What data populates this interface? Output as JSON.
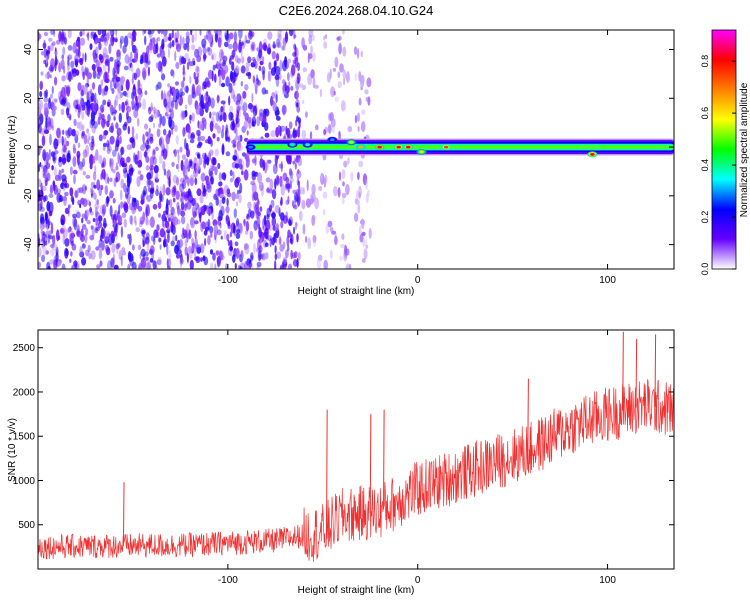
{
  "title": "C2E6.2024.268.04.10.G24",
  "chart_data": [
    {
      "type": "heatmap",
      "xlabel": "Height of straight line (km)",
      "ylabel": "Frequency (Hz)",
      "xlim": [
        -200,
        135
      ],
      "ylim": [
        -50,
        48
      ],
      "x_ticks": [
        -100,
        0,
        100
      ],
      "x_tick_labels": [
        "-100",
        "0",
        "100"
      ],
      "y_ticks": [
        -40,
        -20,
        0,
        20,
        40
      ],
      "y_tick_labels": [
        "-40",
        "-20",
        "0",
        "20",
        "40"
      ],
      "grid": false,
      "colorbar": {
        "label": "Normalized spectral amplitude",
        "range": [
          0,
          0.92
        ],
        "ticks": [
          0,
          0.2,
          0.4,
          0.6,
          0.8
        ],
        "tick_labels": [
          "0.0",
          "0.2",
          "0.4",
          "0.6",
          "0.8"
        ],
        "colormap": [
          "#ffffff",
          "#6600ff",
          "#0000ff",
          "#00ffff",
          "#00ff00",
          "#ffff00",
          "#ff8000",
          "#ff0000",
          "#ff00ff"
        ]
      },
      "noise_region_x": [
        -200,
        -25
      ],
      "band": {
        "center_hz": 0,
        "half_width_hz": 3,
        "x_start": -90,
        "x_end": 135
      },
      "hotspots": [
        {
          "x": -88,
          "f": 0,
          "amp": 0.3
        },
        {
          "x": -66,
          "f": 1,
          "amp": 0.4
        },
        {
          "x": -58,
          "f": 1,
          "amp": 0.35
        },
        {
          "x": -45,
          "f": 3,
          "amp": 0.3
        },
        {
          "x": -35,
          "f": 2,
          "amp": 0.55
        },
        {
          "x": -30,
          "f": 0,
          "amp": 0.65
        },
        {
          "x": -20,
          "f": 0,
          "amp": 0.85
        },
        {
          "x": -10,
          "f": 0,
          "amp": 0.8
        },
        {
          "x": -5,
          "f": 0,
          "amp": 0.82
        },
        {
          "x": 2,
          "f": -2,
          "amp": 0.6
        },
        {
          "x": 15,
          "f": 0,
          "amp": 0.75
        },
        {
          "x": 92,
          "f": -3,
          "amp": 0.8
        }
      ]
    },
    {
      "type": "line",
      "xlabel": "Height of straight line (km)",
      "ylabel": "SNR (10 * v/v)",
      "xlim": [
        -200,
        135
      ],
      "ylim": [
        0,
        2700
      ],
      "x_ticks": [
        -100,
        0,
        100
      ],
      "x_tick_labels": [
        "-100",
        "0",
        "100"
      ],
      "y_ticks": [
        500,
        1000,
        1500,
        2000,
        2500
      ],
      "y_tick_labels": [
        "500",
        "1000",
        "1500",
        "2000",
        "2500"
      ],
      "grid": false,
      "line_color": "#f03030",
      "trend": [
        {
          "x": -200,
          "y": 250
        },
        {
          "x": -120,
          "y": 270
        },
        {
          "x": -75,
          "y": 320
        },
        {
          "x": -50,
          "y": 420
        },
        {
          "x": -40,
          "y": 600
        },
        {
          "x": -20,
          "y": 650
        },
        {
          "x": 0,
          "y": 900
        },
        {
          "x": 20,
          "y": 1050
        },
        {
          "x": 40,
          "y": 1200
        },
        {
          "x": 60,
          "y": 1350
        },
        {
          "x": 80,
          "y": 1600
        },
        {
          "x": 100,
          "y": 1750
        },
        {
          "x": 120,
          "y": 1850
        },
        {
          "x": 135,
          "y": 1800
        }
      ],
      "spikes": [
        {
          "x": -155,
          "y": 980
        },
        {
          "x": -48,
          "y": 1800
        },
        {
          "x": -25,
          "y": 1750
        },
        {
          "x": -18,
          "y": 1800
        },
        {
          "x": 58,
          "y": 2150
        },
        {
          "x": 108,
          "y": 2680
        },
        {
          "x": 115,
          "y": 2600
        },
        {
          "x": 125,
          "y": 2650
        }
      ]
    }
  ]
}
